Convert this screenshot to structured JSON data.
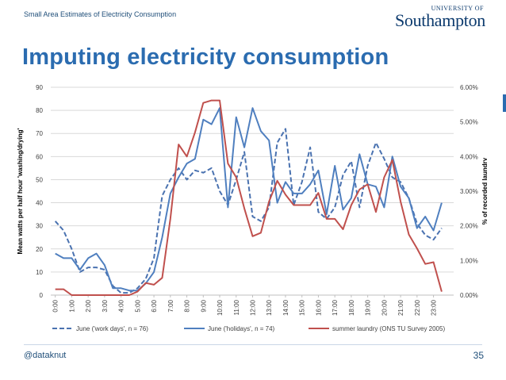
{
  "header": {
    "subtitle": "Small Area Estimates of Electricity Consumption",
    "logo_top": "UNIVERSITY OF",
    "logo_main": "Southampton"
  },
  "title": "Imputing electricity consumption",
  "footer": {
    "handle": "@dataknut",
    "page_number": "35"
  },
  "colors": {
    "title": "#2b6cb0",
    "series_work": "#4a72b0",
    "series_holiday": "#4f7fbf",
    "series_laundry": "#c0504d"
  },
  "chart_data": {
    "type": "line",
    "ylabel": "Mean watts per half hour 'washing/drying'",
    "y2label": "% of recorded laundry",
    "ylim": [
      0,
      90
    ],
    "y_ticks": [
      "0",
      "10",
      "20",
      "30",
      "40",
      "50",
      "60",
      "70",
      "80",
      "90"
    ],
    "y2lim": [
      0,
      6
    ],
    "y2_ticks": [
      "0.00%",
      "1.00%",
      "2.00%",
      "3.00%",
      "4.00%",
      "5.00%",
      "6.00%"
    ],
    "x_ticks": [
      "0:00",
      "1:00",
      "2:00",
      "3:00",
      "4:00",
      "5:00",
      "6:00",
      "7:00",
      "8:00",
      "9:00",
      "10:00",
      "11:00",
      "12:00",
      "13:00",
      "14:00",
      "15:00",
      "16:00",
      "17:00",
      "18:00",
      "19:00",
      "20:00",
      "21:00",
      "22:00",
      "23:00"
    ],
    "grid": "horizontal",
    "legend_position": "bottom",
    "series": [
      {
        "name": "June ('work days', n = 76)",
        "axis": "left",
        "style": "dashed",
        "values": [
          32,
          28,
          20,
          10,
          12,
          12,
          11,
          4,
          1,
          1,
          3,
          7,
          16,
          43,
          50,
          55,
          50,
          54,
          53,
          55,
          45,
          39,
          50,
          62,
          34,
          32,
          38,
          66,
          72,
          39,
          49,
          64,
          36,
          33,
          38,
          52,
          58,
          38,
          56,
          66,
          59,
          51,
          49,
          42,
          31,
          26,
          24,
          29
        ]
      },
      {
        "name": "June ('holidays', n = 74)",
        "axis": "left",
        "style": "solid",
        "values": [
          18,
          16,
          16,
          11,
          16,
          18,
          13,
          3,
          3,
          2,
          2,
          5,
          10,
          25,
          44,
          51,
          57,
          59,
          76,
          74,
          81,
          38,
          77,
          64,
          81,
          71,
          67,
          40,
          49,
          44,
          44,
          48,
          54,
          35,
          56,
          37,
          42,
          61,
          48,
          47,
          38,
          60,
          47,
          42,
          29,
          34,
          28,
          40
        ]
      },
      {
        "name": "summer laundry (ONS TU Survey 2005)",
        "axis": "right",
        "style": "solid",
        "values": [
          0.17,
          0.17,
          0.0,
          0.0,
          0.0,
          0.0,
          0.0,
          0.0,
          0.0,
          0.0,
          0.1,
          0.35,
          0.3,
          0.5,
          2.2,
          4.35,
          4.0,
          4.7,
          5.55,
          5.62,
          5.62,
          3.8,
          3.4,
          2.5,
          1.7,
          1.8,
          2.7,
          3.3,
          2.9,
          2.6,
          2.6,
          2.6,
          2.95,
          2.2,
          2.2,
          1.9,
          2.6,
          3.05,
          3.2,
          2.4,
          3.4,
          3.9,
          2.7,
          1.75,
          1.35,
          0.9,
          0.95,
          0.1
        ]
      }
    ]
  }
}
